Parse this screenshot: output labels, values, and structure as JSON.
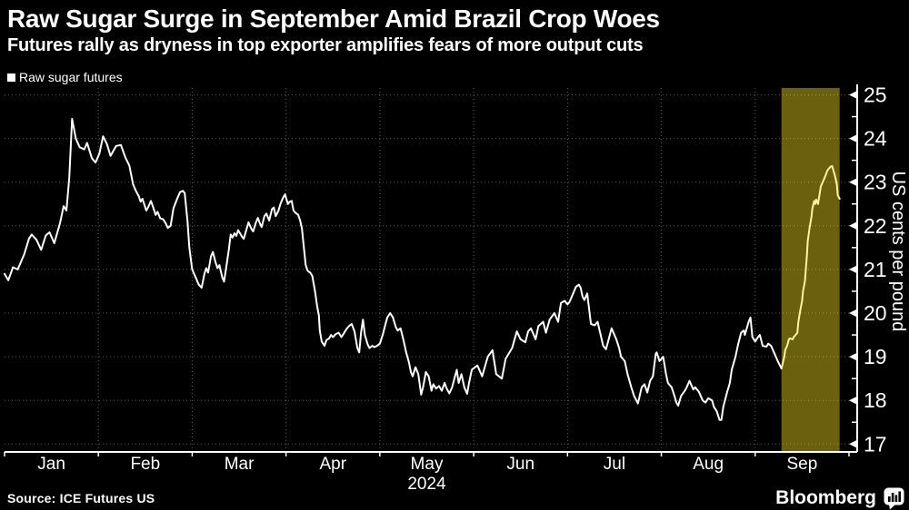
{
  "header": {
    "title": "Raw Sugar Surge in September Amid Brazil Crop Woes",
    "subtitle": "Futures rally as dryness in top exporter amplifies fears of more output cuts"
  },
  "legend": {
    "label": "Raw sugar futures",
    "marker_color": "#ffffff"
  },
  "footer": {
    "source": "Source: ICE Futures US",
    "brand": "Bloomberg"
  },
  "chart_data": {
    "type": "line",
    "title": "Raw Sugar Surge in September Amid Brazil Crop Woes",
    "x_categories": [
      "Jan",
      "Feb",
      "Mar",
      "Apr",
      "May",
      "Jun",
      "Jul",
      "Aug",
      "Sep"
    ],
    "x_year_label": "2024",
    "ylabel": "US cents per pound",
    "ylim": [
      17,
      25
    ],
    "y_ticks": [
      25,
      24,
      23,
      22,
      21,
      20,
      19,
      18,
      17
    ],
    "grid": "dotted",
    "legend_position": "top-left",
    "colors": {
      "line": "#ffffff",
      "grid": "#5c5c5c",
      "axis": "#ffffff",
      "band_fill": "#ffe41e",
      "band_opacity": 0.42,
      "background": "#000000"
    },
    "highlight_band": {
      "x_start_month": 8.28,
      "x_end_month": 8.9
    },
    "series": [
      {
        "name": "Raw sugar futures",
        "x_unit": "months_since_2024-01-01",
        "points": [
          [
            0.0,
            20.9
          ],
          [
            0.04,
            20.75
          ],
          [
            0.09,
            21.05
          ],
          [
            0.14,
            21.0
          ],
          [
            0.21,
            21.35
          ],
          [
            0.26,
            21.7
          ],
          [
            0.29,
            21.8
          ],
          [
            0.34,
            21.68
          ],
          [
            0.39,
            21.45
          ],
          [
            0.44,
            21.78
          ],
          [
            0.48,
            21.85
          ],
          [
            0.53,
            21.6
          ],
          [
            0.59,
            22.05
          ],
          [
            0.63,
            22.45
          ],
          [
            0.66,
            22.35
          ],
          [
            0.69,
            23.1
          ],
          [
            0.72,
            24.45
          ],
          [
            0.76,
            24.0
          ],
          [
            0.8,
            23.8
          ],
          [
            0.85,
            23.75
          ],
          [
            0.88,
            23.9
          ],
          [
            0.93,
            23.55
          ],
          [
            0.97,
            23.45
          ],
          [
            1.01,
            23.65
          ],
          [
            1.05,
            24.05
          ],
          [
            1.09,
            23.88
          ],
          [
            1.13,
            23.6
          ],
          [
            1.19,
            23.83
          ],
          [
            1.24,
            23.85
          ],
          [
            1.29,
            23.55
          ],
          [
            1.33,
            23.38
          ],
          [
            1.37,
            22.95
          ],
          [
            1.4,
            22.8
          ],
          [
            1.43,
            22.68
          ],
          [
            1.45,
            22.55
          ],
          [
            1.47,
            22.62
          ],
          [
            1.51,
            22.35
          ],
          [
            1.53,
            22.42
          ],
          [
            1.56,
            22.57
          ],
          [
            1.58,
            22.45
          ],
          [
            1.61,
            22.25
          ],
          [
            1.63,
            22.32
          ],
          [
            1.66,
            22.17
          ],
          [
            1.69,
            22.15
          ],
          [
            1.72,
            22.05
          ],
          [
            1.74,
            21.95
          ],
          [
            1.77,
            22.0
          ],
          [
            1.8,
            22.4
          ],
          [
            1.84,
            22.62
          ],
          [
            1.87,
            22.77
          ],
          [
            1.9,
            22.8
          ],
          [
            1.92,
            22.75
          ],
          [
            1.95,
            22.1
          ],
          [
            1.97,
            21.5
          ],
          [
            2.0,
            21.0
          ],
          [
            2.04,
            20.8
          ],
          [
            2.07,
            20.65
          ],
          [
            2.1,
            20.58
          ],
          [
            2.13,
            20.9
          ],
          [
            2.15,
            21.03
          ],
          [
            2.17,
            20.93
          ],
          [
            2.2,
            21.3
          ],
          [
            2.22,
            21.4
          ],
          [
            2.25,
            21.15
          ],
          [
            2.27,
            21.03
          ],
          [
            2.29,
            21.1
          ],
          [
            2.32,
            20.82
          ],
          [
            2.34,
            20.72
          ],
          [
            2.37,
            21.15
          ],
          [
            2.39,
            21.45
          ],
          [
            2.41,
            21.8
          ],
          [
            2.43,
            21.73
          ],
          [
            2.45,
            21.83
          ],
          [
            2.47,
            21.77
          ],
          [
            2.49,
            21.9
          ],
          [
            2.53,
            21.75
          ],
          [
            2.55,
            21.7
          ],
          [
            2.58,
            21.93
          ],
          [
            2.6,
            22.08
          ],
          [
            2.63,
            21.93
          ],
          [
            2.65,
            21.87
          ],
          [
            2.68,
            22.08
          ],
          [
            2.7,
            22.18
          ],
          [
            2.72,
            22.06
          ],
          [
            2.74,
            21.97
          ],
          [
            2.77,
            22.22
          ],
          [
            2.79,
            22.28
          ],
          [
            2.82,
            22.12
          ],
          [
            2.85,
            22.38
          ],
          [
            2.87,
            22.42
          ],
          [
            2.89,
            22.22
          ],
          [
            2.92,
            22.35
          ],
          [
            2.94,
            22.5
          ],
          [
            2.97,
            22.65
          ],
          [
            2.99,
            22.72
          ],
          [
            3.02,
            22.5
          ],
          [
            3.04,
            22.55
          ],
          [
            3.06,
            22.57
          ],
          [
            3.08,
            22.35
          ],
          [
            3.1,
            22.3
          ],
          [
            3.13,
            22.25
          ],
          [
            3.15,
            22.12
          ],
          [
            3.17,
            21.93
          ],
          [
            3.19,
            21.5
          ],
          [
            3.21,
            21.1
          ],
          [
            3.23,
            20.97
          ],
          [
            3.26,
            20.92
          ],
          [
            3.28,
            20.85
          ],
          [
            3.31,
            20.48
          ],
          [
            3.33,
            20.18
          ],
          [
            3.35,
            19.95
          ],
          [
            3.36,
            19.6
          ],
          [
            3.38,
            19.35
          ],
          [
            3.41,
            19.25
          ],
          [
            3.43,
            19.38
          ],
          [
            3.46,
            19.42
          ],
          [
            3.48,
            19.5
          ],
          [
            3.5,
            19.45
          ],
          [
            3.53,
            19.52
          ],
          [
            3.56,
            19.55
          ],
          [
            3.59,
            19.45
          ],
          [
            3.62,
            19.55
          ],
          [
            3.64,
            19.62
          ],
          [
            3.67,
            19.7
          ],
          [
            3.7,
            19.75
          ],
          [
            3.73,
            19.58
          ],
          [
            3.76,
            19.2
          ],
          [
            3.78,
            19.1
          ],
          [
            3.8,
            19.55
          ],
          [
            3.82,
            19.85
          ],
          [
            3.84,
            19.5
          ],
          [
            3.87,
            19.28
          ],
          [
            3.89,
            19.2
          ],
          [
            3.92,
            19.25
          ],
          [
            3.94,
            19.22
          ],
          [
            3.97,
            19.25
          ],
          [
            4.0,
            19.3
          ],
          [
            4.03,
            19.5
          ],
          [
            4.06,
            19.75
          ],
          [
            4.08,
            19.9
          ],
          [
            4.11,
            20.0
          ],
          [
            4.14,
            19.9
          ],
          [
            4.17,
            19.68
          ],
          [
            4.19,
            19.6
          ],
          [
            4.22,
            19.65
          ],
          [
            4.25,
            19.4
          ],
          [
            4.28,
            19.1
          ],
          [
            4.31,
            18.87
          ],
          [
            4.33,
            18.65
          ],
          [
            4.35,
            18.55
          ],
          [
            4.38,
            18.76
          ],
          [
            4.41,
            18.6
          ],
          [
            4.44,
            18.13
          ],
          [
            4.46,
            18.3
          ],
          [
            4.49,
            18.65
          ],
          [
            4.52,
            18.55
          ],
          [
            4.55,
            18.22
          ],
          [
            4.57,
            18.37
          ],
          [
            4.6,
            18.27
          ],
          [
            4.63,
            18.33
          ],
          [
            4.66,
            18.22
          ],
          [
            4.69,
            18.4
          ],
          [
            4.71,
            18.28
          ],
          [
            4.74,
            18.16
          ],
          [
            4.77,
            18.3
          ],
          [
            4.8,
            18.55
          ],
          [
            4.82,
            18.7
          ],
          [
            4.84,
            18.4
          ],
          [
            4.87,
            18.6
          ],
          [
            4.9,
            18.3
          ],
          [
            4.93,
            18.15
          ],
          [
            4.95,
            18.4
          ],
          [
            4.98,
            18.7
          ],
          [
            5.04,
            18.8
          ],
          [
            5.09,
            18.55
          ],
          [
            5.15,
            19.0
          ],
          [
            5.2,
            19.15
          ],
          [
            5.24,
            18.6
          ],
          [
            5.3,
            18.5
          ],
          [
            5.34,
            18.95
          ],
          [
            5.41,
            19.2
          ],
          [
            5.46,
            19.58
          ],
          [
            5.5,
            19.4
          ],
          [
            5.55,
            19.33
          ],
          [
            5.58,
            19.58
          ],
          [
            5.61,
            19.65
          ],
          [
            5.66,
            19.4
          ],
          [
            5.69,
            19.7
          ],
          [
            5.74,
            19.8
          ],
          [
            5.77,
            19.55
          ],
          [
            5.81,
            19.85
          ],
          [
            5.86,
            20.0
          ],
          [
            5.9,
            19.8
          ],
          [
            5.93,
            20.23
          ],
          [
            5.97,
            20.28
          ],
          [
            6.0,
            20.2
          ],
          [
            6.02,
            20.25
          ],
          [
            6.05,
            20.4
          ],
          [
            6.09,
            20.6
          ],
          [
            6.12,
            20.65
          ],
          [
            6.14,
            20.58
          ],
          [
            6.16,
            20.38
          ],
          [
            6.18,
            20.3
          ],
          [
            6.21,
            20.45
          ],
          [
            6.25,
            19.75
          ],
          [
            6.29,
            19.72
          ],
          [
            6.32,
            19.8
          ],
          [
            6.38,
            19.25
          ],
          [
            6.41,
            19.17
          ],
          [
            6.47,
            19.65
          ],
          [
            6.52,
            19.4
          ],
          [
            6.55,
            19.2
          ],
          [
            6.57,
            19.0
          ],
          [
            6.61,
            18.9
          ],
          [
            6.64,
            18.6
          ],
          [
            6.68,
            18.3
          ],
          [
            6.71,
            18.1
          ],
          [
            6.75,
            17.93
          ],
          [
            6.79,
            18.3
          ],
          [
            6.82,
            18.37
          ],
          [
            6.85,
            18.18
          ],
          [
            6.88,
            18.45
          ],
          [
            6.91,
            18.55
          ],
          [
            6.94,
            19.07
          ],
          [
            6.95,
            19.1
          ],
          [
            6.98,
            18.9
          ],
          [
            7.02,
            19.0
          ],
          [
            7.05,
            18.6
          ],
          [
            7.07,
            18.4
          ],
          [
            7.11,
            18.3
          ],
          [
            7.14,
            18.1
          ],
          [
            7.16,
            17.95
          ],
          [
            7.18,
            17.88
          ],
          [
            7.21,
            18.1
          ],
          [
            7.25,
            18.22
          ],
          [
            7.27,
            18.3
          ],
          [
            7.3,
            18.45
          ],
          [
            7.34,
            18.25
          ],
          [
            7.36,
            18.3
          ],
          [
            7.4,
            18.2
          ],
          [
            7.44,
            18.0
          ],
          [
            7.47,
            17.95
          ],
          [
            7.5,
            18.05
          ],
          [
            7.54,
            18.0
          ],
          [
            7.56,
            17.85
          ],
          [
            7.59,
            17.75
          ],
          [
            7.62,
            17.55
          ],
          [
            7.64,
            17.55
          ],
          [
            7.66,
            17.85
          ],
          [
            7.7,
            18.18
          ],
          [
            7.73,
            18.4
          ],
          [
            7.75,
            18.7
          ],
          [
            7.79,
            19.0
          ],
          [
            7.82,
            19.3
          ],
          [
            7.85,
            19.55
          ],
          [
            7.88,
            19.6
          ],
          [
            7.89,
            19.5
          ],
          [
            7.93,
            19.8
          ],
          [
            7.95,
            19.9
          ],
          [
            7.97,
            19.45
          ],
          [
            8.0,
            19.35
          ],
          [
            8.03,
            19.45
          ],
          [
            8.05,
            19.5
          ],
          [
            8.08,
            19.25
          ],
          [
            8.12,
            19.23
          ],
          [
            8.14,
            19.3
          ],
          [
            8.17,
            19.25
          ],
          [
            8.21,
            19.05
          ],
          [
            8.24,
            18.9
          ],
          [
            8.28,
            18.73
          ],
          [
            8.31,
            19.0
          ],
          [
            8.32,
            19.15
          ],
          [
            8.34,
            19.25
          ],
          [
            8.36,
            19.4
          ],
          [
            8.37,
            19.42
          ],
          [
            8.4,
            19.4
          ],
          [
            8.41,
            19.45
          ],
          [
            8.43,
            19.5
          ],
          [
            8.45,
            19.55
          ],
          [
            8.46,
            19.8
          ],
          [
            8.48,
            20.05
          ],
          [
            8.5,
            20.28
          ],
          [
            8.51,
            20.5
          ],
          [
            8.53,
            20.73
          ],
          [
            8.55,
            21.3
          ],
          [
            8.56,
            21.65
          ],
          [
            8.58,
            21.95
          ],
          [
            8.6,
            22.2
          ],
          [
            8.61,
            22.4
          ],
          [
            8.63,
            22.57
          ],
          [
            8.64,
            22.5
          ],
          [
            8.65,
            22.6
          ],
          [
            8.67,
            22.5
          ],
          [
            8.7,
            22.9
          ],
          [
            8.74,
            23.1
          ],
          [
            8.77,
            23.27
          ],
          [
            8.8,
            23.35
          ],
          [
            8.82,
            23.37
          ],
          [
            8.85,
            23.15
          ],
          [
            8.87,
            22.95
          ],
          [
            8.88,
            22.7
          ],
          [
            8.9,
            22.62
          ]
        ]
      }
    ]
  }
}
